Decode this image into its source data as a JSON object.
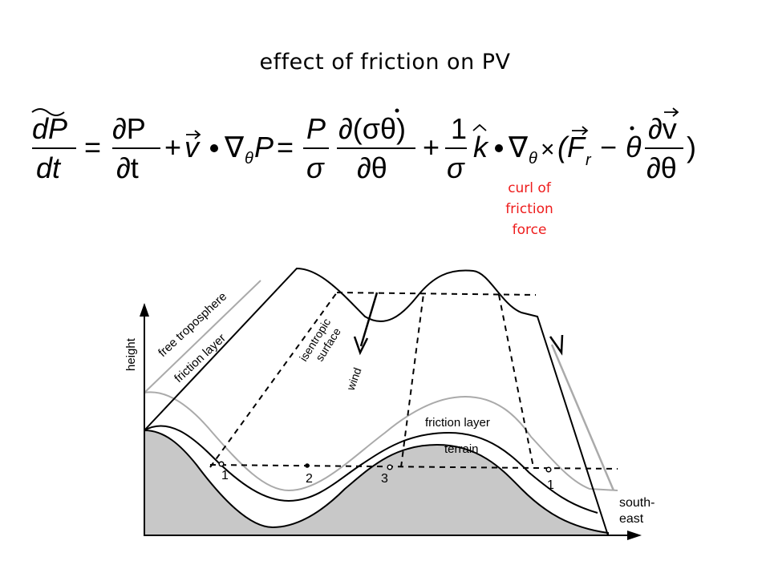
{
  "title": "effect of friction on PV",
  "equation": {
    "lhs_num": "dP",
    "lhs_den": "dt",
    "t1_num": "∂P",
    "t1_den": "∂t",
    "t2": "v",
    "t2_op": "∇",
    "t2_sub": "θ",
    "t2_p": "P",
    "t3_num": "P",
    "t3_den": "σ",
    "t4_num": "∂(σθ)",
    "t4_den": "∂θ",
    "t5_num": "1",
    "t5_den": "σ",
    "t5_k": "k",
    "t5_sub": "θ",
    "t5_times": "×",
    "t5_open": "(F",
    "t5_r": "r",
    "t5_minus": "−",
    "t5_theta": "θ",
    "t6_num": "∂v",
    "t6_den": "∂θ",
    "close": ")"
  },
  "annotation": {
    "line1": "curl of",
    "line2": "friction",
    "line3": "force"
  },
  "diagram": {
    "y_axis_label": "height",
    "x_axis_label_1": "south-",
    "x_axis_label_2": "east",
    "free_troposphere": "free troposphere",
    "friction_layer_left": "friction layer",
    "isentropic_1": "isentropic",
    "isentropic_2": "surface",
    "wind": "wind",
    "friction_layer_right": "friction layer",
    "terrain": "terrain",
    "points": [
      "1",
      "2",
      "3",
      "1"
    ],
    "terrain_fill": "#c8c8c8",
    "friction_line_color": "#aaaaaa"
  }
}
